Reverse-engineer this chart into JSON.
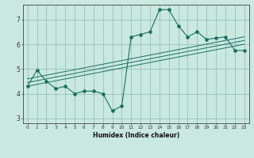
{
  "title": "",
  "xlabel": "Humidex (Indice chaleur)",
  "ylabel": "",
  "bg_color": "#c8e8e0",
  "grid_color": "#90b8b0",
  "line_color": "#1a7060",
  "xlim": [
    -0.5,
    23.5
  ],
  "ylim": [
    2.8,
    7.6
  ],
  "xticks": [
    0,
    1,
    2,
    3,
    4,
    5,
    6,
    7,
    8,
    9,
    10,
    11,
    12,
    13,
    14,
    15,
    16,
    17,
    18,
    19,
    20,
    21,
    22,
    23
  ],
  "yticks": [
    3,
    4,
    5,
    6,
    7
  ],
  "data_x": [
    0,
    1,
    2,
    3,
    4,
    5,
    6,
    7,
    8,
    9,
    10,
    11,
    12,
    13,
    14,
    15,
    16,
    17,
    18,
    19,
    20,
    21,
    22,
    23
  ],
  "data_y": [
    4.3,
    4.95,
    4.5,
    4.2,
    4.3,
    4.0,
    4.1,
    4.1,
    4.0,
    3.3,
    3.5,
    6.3,
    6.4,
    6.5,
    7.4,
    7.4,
    6.75,
    6.3,
    6.5,
    6.2,
    6.25,
    6.3,
    5.75,
    5.75
  ],
  "trend_lines": [
    {
      "x": [
        0,
        23
      ],
      "y": [
        4.3,
        6.0
      ]
    },
    {
      "x": [
        0,
        23
      ],
      "y": [
        4.45,
        6.15
      ]
    },
    {
      "x": [
        0,
        23
      ],
      "y": [
        4.6,
        6.3
      ]
    }
  ]
}
